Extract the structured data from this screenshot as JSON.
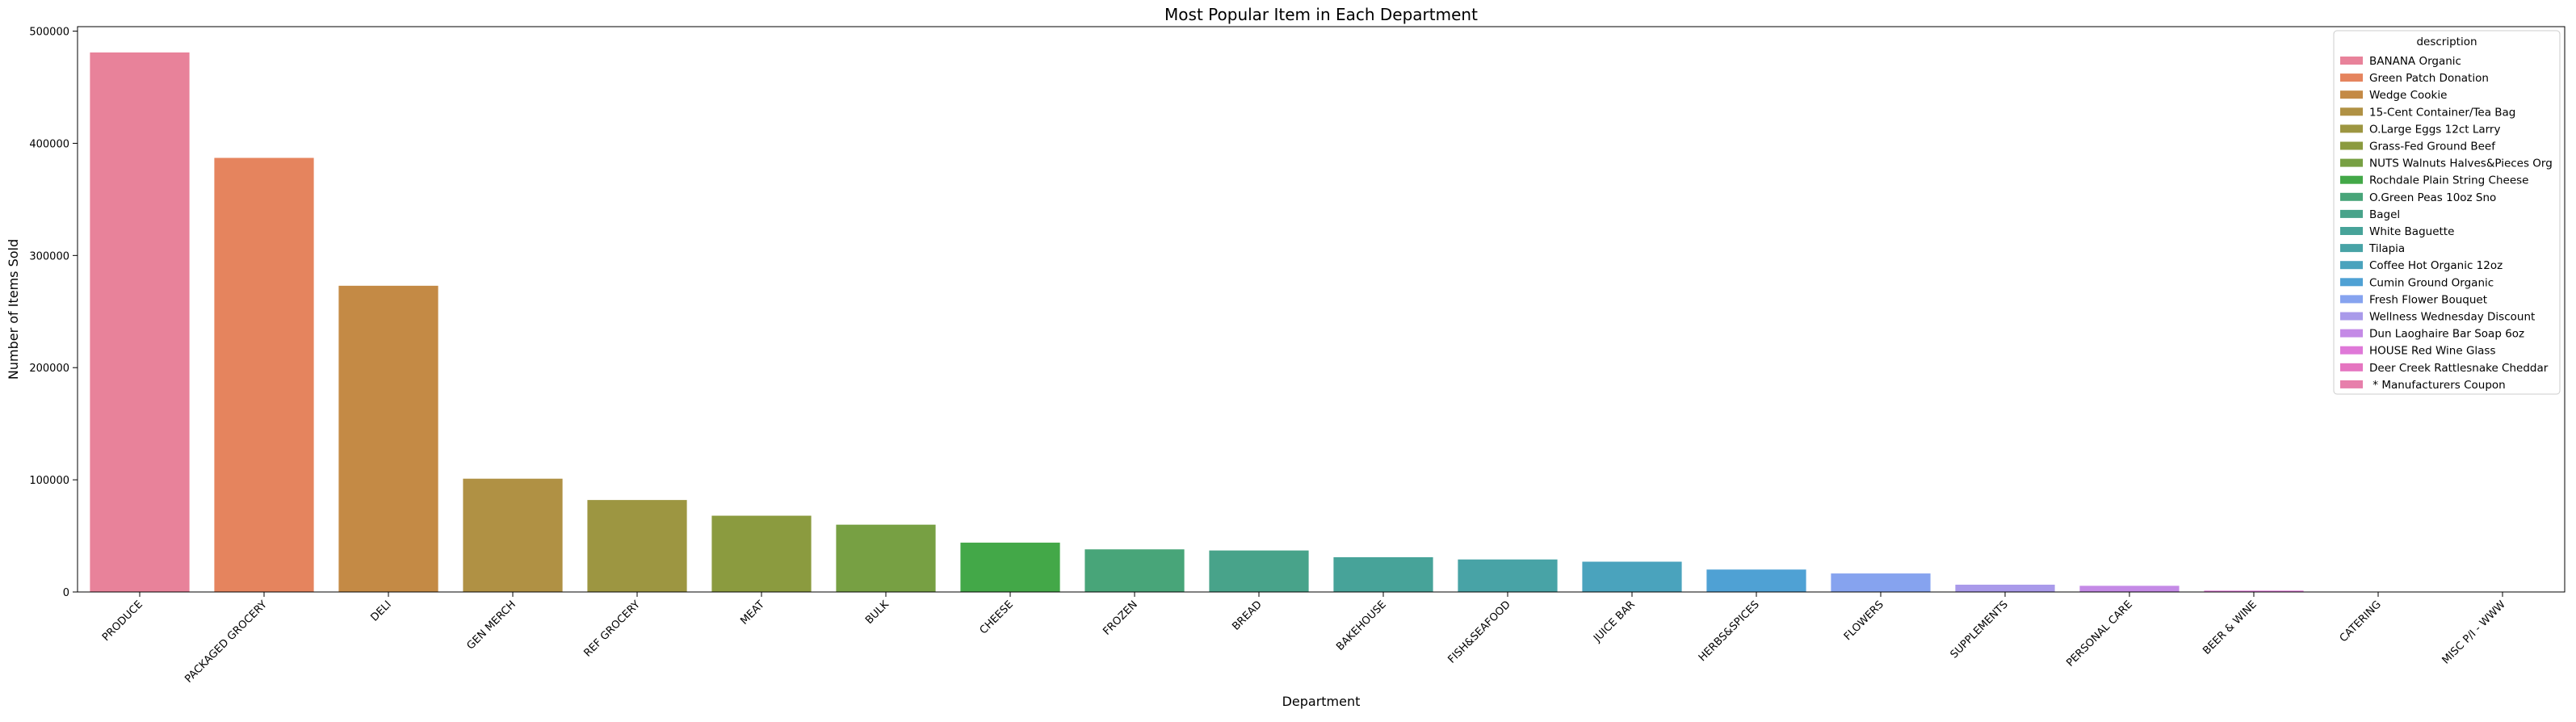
{
  "chart_data": {
    "type": "bar",
    "title": "Most Popular Item in Each Department",
    "xlabel": "Department",
    "ylabel": "Number of Items Sold",
    "ylim": [
      0,
      504000
    ],
    "yticks": [
      0,
      100000,
      200000,
      300000,
      400000,
      500000
    ],
    "ytick_labels": [
      "0",
      "100000",
      "200000",
      "300000",
      "400000",
      "500000"
    ],
    "grid": false,
    "legend_position": "top-right",
    "legend_title": "description",
    "categories": [
      "PRODUCE",
      "PACKAGED GROCERY",
      "DELI",
      "GEN MERCH",
      "REF GROCERY",
      "MEAT",
      "BULK",
      "CHEESE",
      "FROZEN",
      "BREAD",
      "BAKEHOUSE",
      "FISH&SEAFOOD",
      "JUICE BAR",
      "HERBS&SPICES",
      "FLOWERS",
      "SUPPLEMENTS",
      "PERSONAL CARE",
      "BEER & WINE",
      "CATERING",
      "MISC P/I - WWW"
    ],
    "values": [
      481000,
      387000,
      273000,
      101000,
      82000,
      68000,
      60000,
      44000,
      38000,
      37000,
      31000,
      29000,
      27000,
      20000,
      16500,
      6500,
      5500,
      1200,
      300,
      150
    ],
    "series": [
      {
        "name": "BANANA Organic",
        "color": "#e8829a"
      },
      {
        "name": "Green Patch Donation",
        "color": "#e5845e"
      },
      {
        "name": "Wedge Cookie",
        "color": "#c48a45"
      },
      {
        "name": "15-Cent Container/Tea Bag",
        "color": "#b09144"
      },
      {
        "name": "O.Large Eggs 12ct Larry",
        "color": "#9d9641"
      },
      {
        "name": "Grass-Fed Ground Beef",
        "color": "#8b9b3f"
      },
      {
        "name": "NUTS Walnuts Halves&Pieces Org",
        "color": "#77a043"
      },
      {
        "name": "Rochdale Plain String Cheese",
        "color": "#43a848"
      },
      {
        "name": "O.Green Peas 10oz Sno",
        "color": "#48a579"
      },
      {
        "name": "Bagel",
        "color": "#48a38a"
      },
      {
        "name": "White Baguette",
        "color": "#47a399"
      },
      {
        "name": "Tilapia",
        "color": "#48a3a6"
      },
      {
        "name": "Coffee Hot Organic 12oz",
        "color": "#4aa3bd"
      },
      {
        "name": "Cumin Ground Organic",
        "color": "#4fa1d4"
      },
      {
        "name": "Fresh Flower Bouquet",
        "color": "#86a3ef"
      },
      {
        "name": "Wellness Wednesday Discount",
        "color": "#a99aea"
      },
      {
        "name": "Dun Laoghaire Bar Soap 6oz",
        "color": "#c48ae6"
      },
      {
        "name": "HOUSE Red Wine Glass",
        "color": "#df78d8"
      },
      {
        "name": "Deer Creek Rattlesnake Cheddar",
        "color": "#e575c0"
      },
      {
        "name": " * Manufacturers Coupon",
        "color": "#e77fab"
      }
    ]
  }
}
